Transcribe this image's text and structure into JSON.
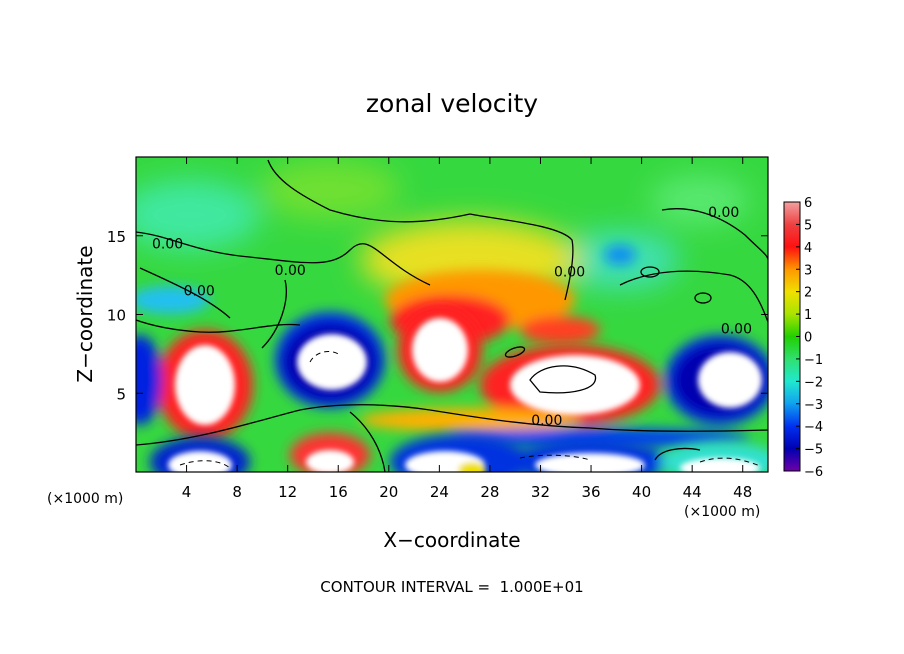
{
  "chart_data": {
    "type": "heatmap",
    "title": "zonal velocity",
    "xlabel": "X−coordinate",
    "ylabel": "Z−coordinate",
    "x_unit": "(×1000 m)",
    "y_unit": "(×1000 m)",
    "xlim": [
      0,
      50
    ],
    "ylim": [
      0,
      20
    ],
    "x_ticks": [
      {
        "value": 4,
        "label": "4"
      },
      {
        "value": 8,
        "label": "8"
      },
      {
        "value": 12,
        "label": "12"
      },
      {
        "value": 16,
        "label": "16"
      },
      {
        "value": 20,
        "label": "20"
      },
      {
        "value": 24,
        "label": "24"
      },
      {
        "value": 28,
        "label": "28"
      },
      {
        "value": 32,
        "label": "32"
      },
      {
        "value": 36,
        "label": "36"
      },
      {
        "value": 40,
        "label": "40"
      },
      {
        "value": 44,
        "label": "44"
      },
      {
        "value": 48,
        "label": "48"
      }
    ],
    "y_ticks": [
      {
        "value": 5,
        "label": "5"
      },
      {
        "value": 10,
        "label": "10"
      },
      {
        "value": 15,
        "label": "15"
      }
    ],
    "colorbar": {
      "range": [
        -6,
        6
      ],
      "levels": [
        {
          "value": 6,
          "label": "6",
          "color": "#f4a0a0"
        },
        {
          "value": 5,
          "label": "5",
          "color": "#ee4040"
        },
        {
          "value": 4,
          "label": "4",
          "color": "#ff1010"
        },
        {
          "value": 3,
          "label": "3",
          "color": "#ff9800"
        },
        {
          "value": 2,
          "label": "2",
          "color": "#f0e000"
        },
        {
          "value": 1,
          "label": "1",
          "color": "#a8e400"
        },
        {
          "value": 0,
          "label": "0",
          "color": "#20d000"
        },
        {
          "value": -1,
          "label": "−1",
          "color": "#30e070"
        },
        {
          "value": -2,
          "label": "−2",
          "color": "#20e8d0"
        },
        {
          "value": -3,
          "label": "−3",
          "color": "#10a0f0"
        },
        {
          "value": -4,
          "label": "−4",
          "color": "#0030f0"
        },
        {
          "value": -5,
          "label": "−5",
          "color": "#0000b0"
        },
        {
          "value": -6,
          "label": "−6",
          "color": "#7000a8"
        }
      ]
    },
    "contour_labels": [
      {
        "text": "0.00",
        "x": 2.5,
        "y": 14.2
      },
      {
        "text": "0.00",
        "x": 5.0,
        "y": 11.2
      },
      {
        "text": "0.00",
        "x": 12.2,
        "y": 12.5
      },
      {
        "text": "0.00",
        "x": 34.3,
        "y": 12.4
      },
      {
        "text": "0.00",
        "x": 46.5,
        "y": 16.2
      },
      {
        "text": "0.00",
        "x": 47.5,
        "y": 8.8
      },
      {
        "text": "0.00",
        "x": 32.5,
        "y": 3.0
      }
    ],
    "contour_interval_text": "CONTOUR INTERVAL =  1.000E+01"
  }
}
